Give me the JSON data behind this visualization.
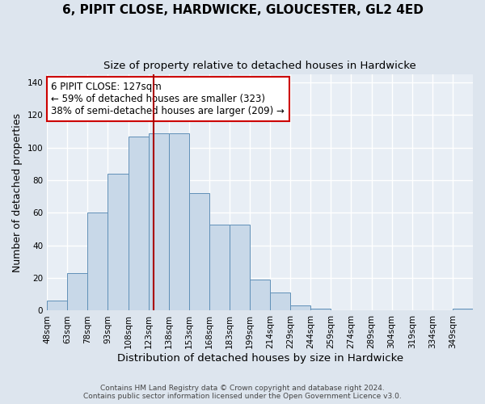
{
  "title": "6, PIPIT CLOSE, HARDWICKE, GLOUCESTER, GL2 4ED",
  "subtitle": "Size of property relative to detached houses in Hardwicke",
  "xlabel": "Distribution of detached houses by size in Hardwicke",
  "ylabel": "Number of detached properties",
  "bin_labels": [
    "48sqm",
    "63sqm",
    "78sqm",
    "93sqm",
    "108sqm",
    "123sqm",
    "138sqm",
    "153sqm",
    "168sqm",
    "183sqm",
    "199sqm",
    "214sqm",
    "229sqm",
    "244sqm",
    "259sqm",
    "274sqm",
    "289sqm",
    "304sqm",
    "319sqm",
    "334sqm",
    "349sqm"
  ],
  "bar_heights": [
    6,
    23,
    60,
    84,
    107,
    109,
    109,
    72,
    53,
    53,
    19,
    11,
    3,
    1,
    0,
    0,
    0,
    0,
    0,
    0,
    1
  ],
  "bar_color": "#c8d8e8",
  "bar_edge_color": "#6090b8",
  "vline_x": 5,
  "vline_color": "#aa0000",
  "annotation_text": "6 PIPIT CLOSE: 127sqm\n← 59% of detached houses are smaller (323)\n38% of semi-detached houses are larger (209) →",
  "annotation_box_color": "#ffffff",
  "annotation_box_edge": "#cc0000",
  "annotation_fontsize": 8.5,
  "title_fontsize": 11,
  "subtitle_fontsize": 9.5,
  "ylabel_fontsize": 9,
  "xlabel_fontsize": 9.5,
  "tick_fontsize": 7.5,
  "ylim": [
    0,
    145
  ],
  "yticks": [
    0,
    20,
    40,
    60,
    80,
    100,
    120,
    140
  ],
  "footer_line1": "Contains HM Land Registry data © Crown copyright and database right 2024.",
  "footer_line2": "Contains public sector information licensed under the Open Government Licence v3.0.",
  "bg_color": "#dde5ee",
  "plot_bg_color": "#e8eef5",
  "grid_color": "#ffffff"
}
